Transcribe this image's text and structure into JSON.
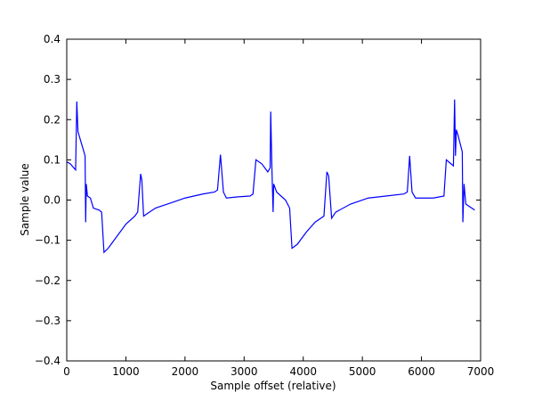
{
  "chart_data": {
    "type": "line",
    "xlabel": "Sample offset (relative)",
    "ylabel": "Sample value",
    "xlim": [
      0,
      7000
    ],
    "ylim": [
      -0.4,
      0.4
    ],
    "xticks": [
      0,
      1000,
      2000,
      3000,
      4000,
      5000,
      6000,
      7000
    ],
    "yticks": [
      {
        "value": -0.4,
        "label": "−0.4"
      },
      {
        "value": -0.3,
        "label": "−0.3"
      },
      {
        "value": -0.2,
        "label": "−0.2"
      },
      {
        "value": -0.1,
        "label": "−0.1"
      },
      {
        "value": 0,
        "label": "0.0"
      },
      0.1,
      0.2,
      0.3,
      0.4
    ],
    "series": [
      {
        "color": "#0000ff",
        "x": [
          0,
          60,
          150,
          170,
          190,
          250,
          310,
          320,
          330,
          350,
          400,
          450,
          550,
          590,
          630,
          700,
          850,
          1000,
          1150,
          1200,
          1250,
          1270,
          1300,
          1350,
          1500,
          1800,
          2000,
          2300,
          2500,
          2550,
          2600,
          2650,
          2700,
          2900,
          3100,
          3150,
          3200,
          3300,
          3400,
          3440,
          3450,
          3470,
          3490,
          3500,
          3550,
          3700,
          3770,
          3810,
          3900,
          4050,
          4200,
          4350,
          4400,
          4430,
          4480,
          4550,
          4800,
          5100,
          5400,
          5700,
          5760,
          5800,
          5840,
          5900,
          6200,
          6380,
          6420,
          6500,
          6540,
          6560,
          6575,
          6590,
          6620,
          6690,
          6700,
          6720,
          6750,
          6850,
          6900
        ],
        "values": [
          0.095,
          0.09,
          0.075,
          0.245,
          0.17,
          0.14,
          0.11,
          -0.055,
          0.04,
          0.01,
          0.005,
          -0.02,
          -0.025,
          -0.03,
          -0.13,
          -0.12,
          -0.09,
          -0.06,
          -0.04,
          -0.03,
          0.065,
          0.05,
          -0.04,
          -0.035,
          -0.02,
          -0.005,
          0.005,
          0.015,
          0.02,
          0.025,
          0.113,
          0.02,
          0.005,
          0.008,
          0.01,
          0.015,
          0.1,
          0.09,
          0.07,
          0.08,
          0.22,
          0.08,
          -0.03,
          0.04,
          0.02,
          0.0,
          -0.02,
          -0.12,
          -0.11,
          -0.08,
          -0.055,
          -0.04,
          0.07,
          0.06,
          -0.045,
          -0.03,
          -0.01,
          0.005,
          0.01,
          0.015,
          0.02,
          0.11,
          0.02,
          0.005,
          0.005,
          0.01,
          0.1,
          0.09,
          0.085,
          0.25,
          0.11,
          0.175,
          0.16,
          0.12,
          -0.055,
          0.04,
          -0.01,
          -0.02,
          -0.025
        ]
      }
    ]
  }
}
